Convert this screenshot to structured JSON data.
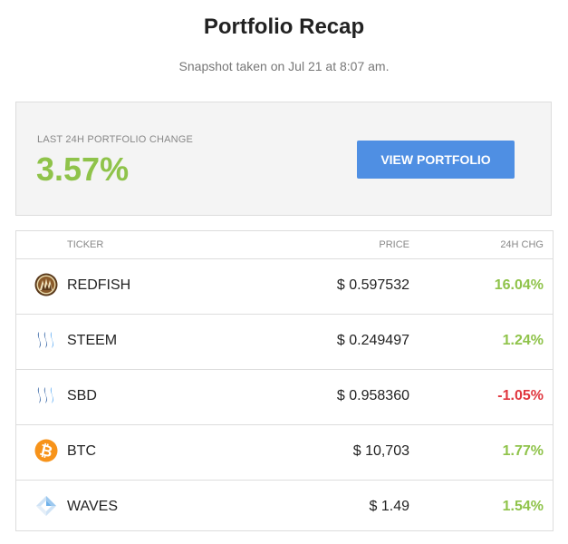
{
  "header": {
    "title": "Portfolio Recap",
    "subtitle": "Snapshot taken on Jul 21 at 8:07 am."
  },
  "summary": {
    "label": "LAST 24H PORTFOLIO CHANGE",
    "value": "3.57%",
    "button_label": "VIEW PORTFOLIO"
  },
  "table": {
    "columns": {
      "ticker": "TICKER",
      "price": "PRICE",
      "change": "24H CHG"
    },
    "rows": [
      {
        "icon": "redfish-icon",
        "ticker": "REDFISH",
        "price": "$ 0.597532",
        "change": "16.04%",
        "direction": "up"
      },
      {
        "icon": "steem-icon",
        "ticker": "STEEM",
        "price": "$ 0.249497",
        "change": "1.24%",
        "direction": "up"
      },
      {
        "icon": "sbd-icon",
        "ticker": "SBD",
        "price": "$ 0.958360",
        "change": "-1.05%",
        "direction": "down"
      },
      {
        "icon": "bitcoin-icon",
        "ticker": "BTC",
        "price": "$ 10,703",
        "change": "1.77%",
        "direction": "up"
      },
      {
        "icon": "waves-icon",
        "ticker": "WAVES",
        "price": "$ 1.49",
        "change": "1.54%",
        "direction": "up"
      }
    ]
  },
  "colors": {
    "positive": "#8fc34a",
    "negative": "#e0373f",
    "button": "#4f8fe3"
  }
}
